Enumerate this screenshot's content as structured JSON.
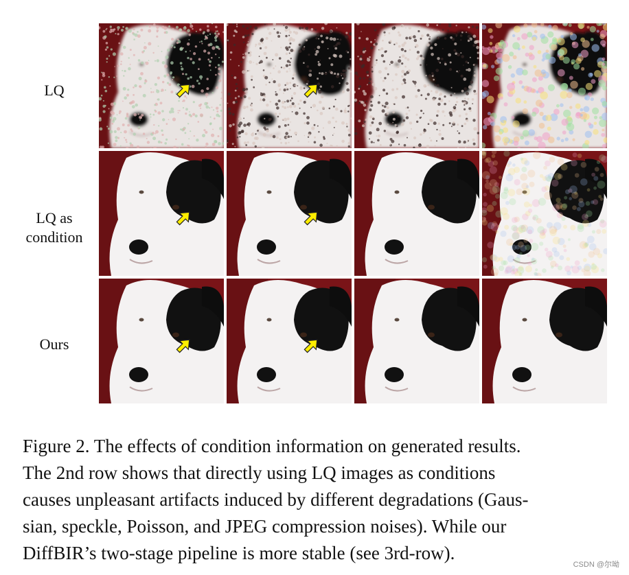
{
  "rows": [
    {
      "label": "LQ",
      "kind": "lq"
    },
    {
      "label": "LQ as\ncondition",
      "kind": "cond"
    },
    {
      "label": "Ours",
      "kind": "ours"
    }
  ],
  "columns": [
    "gaussian",
    "speckle",
    "poisson",
    "jpeg"
  ],
  "arrow_cells": [
    [
      0,
      0
    ],
    [
      0,
      1
    ],
    [
      1,
      0
    ],
    [
      1,
      1
    ],
    [
      2,
      0
    ],
    [
      2,
      1
    ]
  ],
  "caption_lines": [
    "Figure 2. The effects of condition information on generated results.",
    "The 2nd row shows that directly using LQ images as conditions",
    "causes unpleasant artifacts induced by different degradations (Gaus-",
    "sian, speckle, Poisson, and JPEG compression noises). While our",
    "DiffBIR’s two-stage pipeline is more stable (see 3rd-row)."
  ],
  "watermark": "CSDN @尔呦",
  "colors": {
    "background": "#7a1418",
    "arrow": "#ffee00"
  }
}
